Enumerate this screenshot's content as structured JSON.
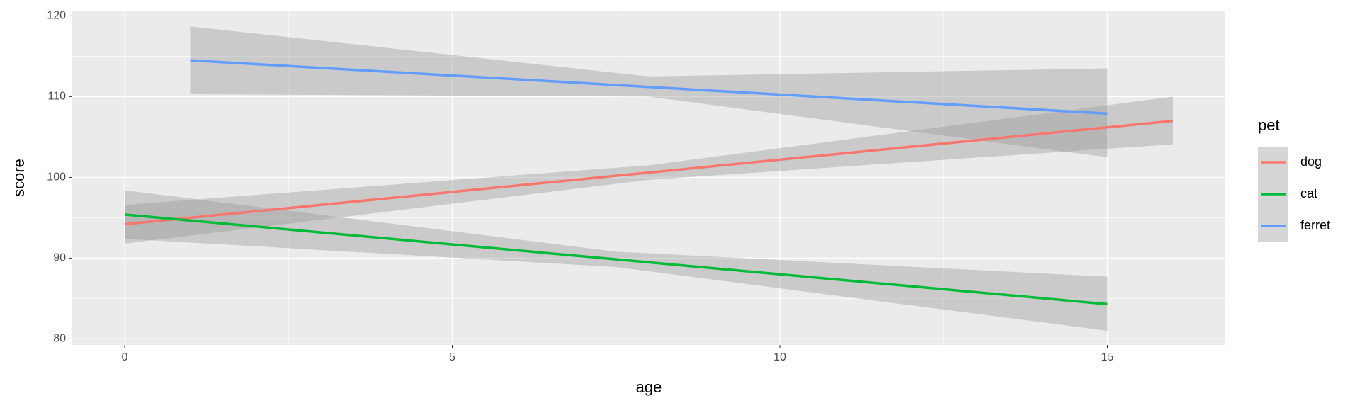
{
  "chart_data": {
    "type": "line",
    "x_label": "age",
    "y_label": "score",
    "legend_title": "pet",
    "legend_position": "right",
    "xlim": [
      -0.8,
      16.8
    ],
    "ylim": [
      79.25,
      120.65
    ],
    "xticks": [
      0,
      5,
      10,
      15
    ],
    "yticks": [
      80,
      90,
      100,
      110,
      120
    ],
    "grid": true,
    "band_color": "#999999",
    "series": [
      {
        "name": "dog",
        "color": "#F8766D",
        "x": [
          0,
          8,
          16
        ],
        "values": [
          94.2,
          100.6,
          107
        ],
        "lower": [
          91.8,
          99.7,
          104.1
        ],
        "upper": [
          96.6,
          101.5,
          110
        ]
      },
      {
        "name": "cat",
        "color": "#00BA38",
        "x": [
          0,
          7.5,
          15
        ],
        "values": [
          95.4,
          89.85,
          84.3
        ],
        "lower": [
          92.4,
          88.9,
          81
        ],
        "upper": [
          98.4,
          90.8,
          87.7
        ]
      },
      {
        "name": "ferret",
        "color": "#619CFF",
        "x": [
          1,
          8,
          15
        ],
        "values": [
          114.5,
          111.2,
          107.9
        ],
        "lower": [
          110.3,
          110,
          102.5
        ],
        "upper": [
          118.7,
          112.5,
          113.5
        ]
      }
    ]
  }
}
